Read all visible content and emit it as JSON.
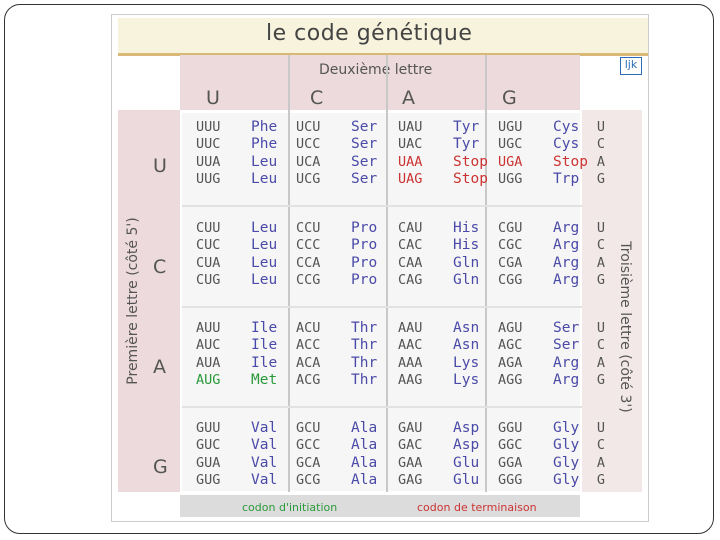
{
  "title": "le code génétique",
  "logo_text": "ljk",
  "second_letter_label": "Deuxième lettre",
  "first_letter_label": "Première lettre (côté 5')",
  "third_letter_label": "Troisième lettre (côté 3')",
  "bases": [
    "U",
    "C",
    "A",
    "G"
  ],
  "third_letters": [
    "U",
    "C",
    "A",
    "G"
  ],
  "colors": {
    "amino": "#4a4aa8",
    "stop": "#cc3333",
    "start": "#2a9a3a",
    "band": "#ecdadc"
  },
  "rows": [
    {
      "first": "U",
      "blocks": [
        {
          "codons": [
            "UUU",
            "UUC",
            "UUA",
            "UUG"
          ],
          "aas": [
            "Phe",
            "Phe",
            "Leu",
            "Leu"
          ]
        },
        {
          "codons": [
            "UCU",
            "UCC",
            "UCA",
            "UCG"
          ],
          "aas": [
            "Ser",
            "Ser",
            "Ser",
            "Ser"
          ]
        },
        {
          "codons": [
            "UAU",
            "UAC",
            "UAA",
            "UAG"
          ],
          "aas": [
            "Tyr",
            "Tyr",
            "Stop",
            "Stop"
          ]
        },
        {
          "codons": [
            "UGU",
            "UGC",
            "UGA",
            "UGG"
          ],
          "aas": [
            "Cys",
            "Cys",
            "Stop",
            "Trp"
          ]
        }
      ]
    },
    {
      "first": "C",
      "blocks": [
        {
          "codons": [
            "CUU",
            "CUC",
            "CUA",
            "CUG"
          ],
          "aas": [
            "Leu",
            "Leu",
            "Leu",
            "Leu"
          ]
        },
        {
          "codons": [
            "CCU",
            "CCC",
            "CCA",
            "CCG"
          ],
          "aas": [
            "Pro",
            "Pro",
            "Pro",
            "Pro"
          ]
        },
        {
          "codons": [
            "CAU",
            "CAC",
            "CAA",
            "CAG"
          ],
          "aas": [
            "His",
            "His",
            "Gln",
            "Gln"
          ]
        },
        {
          "codons": [
            "CGU",
            "CGC",
            "CGA",
            "CGG"
          ],
          "aas": [
            "Arg",
            "Arg",
            "Arg",
            "Arg"
          ]
        }
      ]
    },
    {
      "first": "A",
      "blocks": [
        {
          "codons": [
            "AUU",
            "AUC",
            "AUA",
            "AUG"
          ],
          "aas": [
            "Ile",
            "Ile",
            "Ile",
            "Met"
          ]
        },
        {
          "codons": [
            "ACU",
            "ACC",
            "ACA",
            "ACG"
          ],
          "aas": [
            "Thr",
            "Thr",
            "Thr",
            "Thr"
          ]
        },
        {
          "codons": [
            "AAU",
            "AAC",
            "AAA",
            "AAG"
          ],
          "aas": [
            "Asn",
            "Asn",
            "Lys",
            "Lys"
          ]
        },
        {
          "codons": [
            "AGU",
            "AGC",
            "AGA",
            "AGG"
          ],
          "aas": [
            "Ser",
            "Ser",
            "Arg",
            "Arg"
          ]
        }
      ]
    },
    {
      "first": "G",
      "blocks": [
        {
          "codons": [
            "GUU",
            "GUC",
            "GUA",
            "GUG"
          ],
          "aas": [
            "Val",
            "Val",
            "Val",
            "Val"
          ]
        },
        {
          "codons": [
            "GCU",
            "GCC",
            "GCA",
            "GCG"
          ],
          "aas": [
            "Ala",
            "Ala",
            "Ala",
            "Ala"
          ]
        },
        {
          "codons": [
            "GAU",
            "GAC",
            "GAA",
            "GAG"
          ],
          "aas": [
            "Asp",
            "Asp",
            "Glu",
            "Glu"
          ]
        },
        {
          "codons": [
            "GGU",
            "GGC",
            "GGA",
            "GGG"
          ],
          "aas": [
            "Gly",
            "Gly",
            "Gly",
            "Gly"
          ]
        }
      ]
    }
  ],
  "legend": {
    "initiation": "codon d'initiation",
    "termination": "codon de terminaison"
  }
}
